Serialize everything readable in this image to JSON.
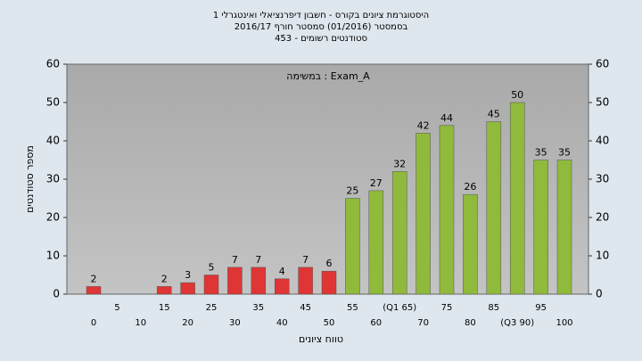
{
  "chart_data": {
    "type": "bar",
    "title": [
      "היסטוגרמת ציונים בקורס - חשבון דיפרנציאלי ואינטגרלי 1",
      "בסמסטר  (01/2016)  סמסטר חורף 2016/17",
      "סטודנטים רשומים - 453"
    ],
    "annotation": "במשימה : Exam_A",
    "ylabel": "מספר סטודנטים",
    "xlabel": "טווח ציונים",
    "categories": [
      "0",
      "5",
      "10",
      "15",
      "20",
      "25",
      "30",
      "35",
      "40",
      "45",
      "50",
      "55",
      "60",
      "(Q1 65)",
      "70",
      "75",
      "80",
      "85",
      "(Q3 90)",
      "95",
      "100"
    ],
    "values": [
      2,
      0,
      0,
      2,
      3,
      5,
      7,
      7,
      4,
      7,
      6,
      25,
      27,
      32,
      42,
      44,
      26,
      45,
      50,
      35,
      35
    ],
    "colors": [
      "#e03535",
      "#e03535",
      "#e03535",
      "#e03535",
      "#e03535",
      "#e03535",
      "#e03535",
      "#e03535",
      "#e03535",
      "#e03535",
      "#e03535",
      "#8fba3c",
      "#8fba3c",
      "#8fba3c",
      "#8fba3c",
      "#8fba3c",
      "#8fba3c",
      "#8fba3c",
      "#8fba3c",
      "#8fba3c",
      "#8fba3c"
    ],
    "ylim": [
      0,
      60
    ],
    "yticks": [
      0,
      10,
      20,
      30,
      40,
      50,
      60
    ],
    "y2lim": [
      0,
      60
    ],
    "y2ticks": [
      0,
      10,
      20,
      30,
      40,
      50,
      60
    ]
  }
}
